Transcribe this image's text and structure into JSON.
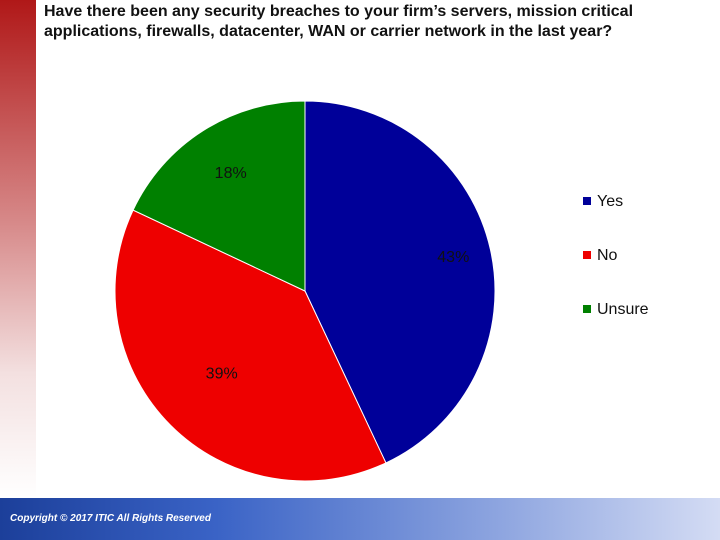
{
  "slide": {
    "title": "Have there been any security breaches to your firm’s servers, mission critical applications, firewalls, datacenter, WAN or carrier network in the last year?",
    "footer": "Copyright © 2017 ITIC All Rights Reserved"
  },
  "chart_data": {
    "type": "pie",
    "title": "Have there been any security breaches to your firm’s servers, mission critical applications, firewalls, datacenter, WAN or carrier network in the last year?",
    "categories": [
      "Yes",
      "No",
      "Unsure"
    ],
    "values": [
      43,
      39,
      18
    ],
    "labels": [
      "43%",
      "39%",
      "18%"
    ],
    "colors": [
      "#000099",
      "#ee0000",
      "#008000"
    ],
    "legend_position": "right"
  }
}
